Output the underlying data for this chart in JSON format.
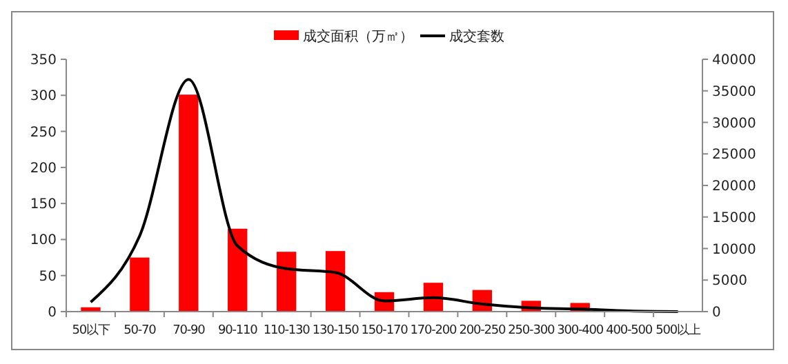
{
  "chart_data": {
    "type": "bar",
    "categories": [
      "50以下",
      "50-70",
      "70-90",
      "90-110",
      "110-130",
      "130-150",
      "150-170",
      "170-200",
      "200-250",
      "250-300",
      "300-400",
      "400-500",
      "500以上"
    ],
    "series": [
      {
        "name": "成交面积（万㎡）",
        "color": "#ff0000",
        "values": [
          6,
          75,
          301,
          115,
          83,
          84,
          27,
          40,
          30,
          15,
          12,
          null,
          0
        ]
      },
      {
        "name": "成交套数",
        "type": "line",
        "axis": "y2",
        "color": "#000000",
        "values": [
          1500,
          12000,
          36800,
          10400,
          6800,
          6200,
          1700,
          2200,
          1200,
          600,
          400,
          100,
          0
        ]
      }
    ],
    "ylim": [
      0,
      350
    ],
    "yticks": [
      0,
      50,
      100,
      150,
      200,
      250,
      300,
      350
    ],
    "y2lim": [
      0,
      40000
    ],
    "y2ticks": [
      0,
      5000,
      10000,
      15000,
      20000,
      25000,
      30000,
      35000,
      40000
    ],
    "legend": "top",
    "marker": "none",
    "line_style": "solid"
  }
}
